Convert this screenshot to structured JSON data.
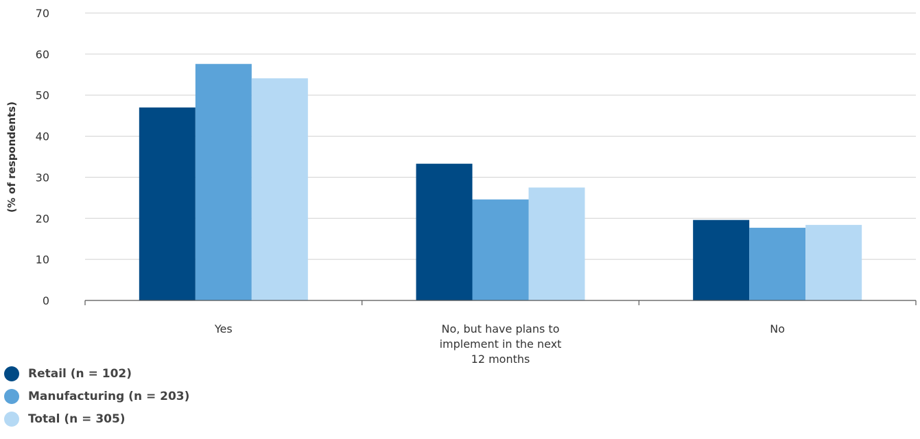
{
  "chart_data": {
    "type": "bar",
    "title": "",
    "xlabel": "",
    "ylabel": "(% of respondents)",
    "ylim": [
      0,
      70
    ],
    "yticks": [
      0,
      10,
      20,
      30,
      40,
      50,
      60,
      70
    ],
    "grid": true,
    "legend_position": "bottom-left",
    "categories": [
      [
        "Yes"
      ],
      [
        "No, but have plans to",
        "implement in the next",
        "12 months"
      ],
      [
        "No"
      ]
    ],
    "series": [
      {
        "name": "Retail (n = 102)",
        "color": "#004a85",
        "values": [
          47,
          33.3,
          19.6
        ]
      },
      {
        "name": "Manufacturing (n = 203)",
        "color": "#5ba3d9",
        "values": [
          57.6,
          24.6,
          17.7
        ]
      },
      {
        "name": "Total (n = 305)",
        "color": "#b5d9f4",
        "values": [
          54.1,
          27.5,
          18.4
        ]
      }
    ]
  }
}
